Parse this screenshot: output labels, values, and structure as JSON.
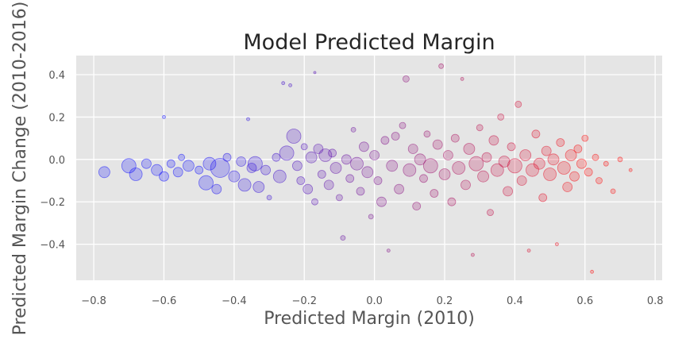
{
  "chart_data": {
    "type": "scatter",
    "title": "Model Predicted Margin",
    "xlabel": "Predicted Margin (2010)",
    "ylabel": "Predicted Margin Change (2010-2016)",
    "xlim": [
      -0.85,
      0.82
    ],
    "ylim": [
      -0.57,
      0.49
    ],
    "xticks": [
      -0.8,
      -0.6,
      -0.4,
      -0.2,
      0.0,
      0.2,
      0.4,
      0.6,
      0.8
    ],
    "xtick_labels": [
      "−0.8",
      "−0.6",
      "−0.4",
      "−0.2",
      "0.0",
      "0.2",
      "0.4",
      "0.6",
      "0.8"
    ],
    "yticks": [
      -0.4,
      -0.2,
      0.0,
      0.2,
      0.4
    ],
    "ytick_labels": [
      "−0.4",
      "−0.2",
      "0.0",
      "0.2",
      "0.4"
    ],
    "grid": true,
    "colors": {
      "background": "#e5e5e5",
      "grid": "#ffffff",
      "negative_margin": "#0000ff",
      "positive_margin": "#ff0000"
    },
    "color_encoding": "blue to red by predicted margin (2010)",
    "points": [
      {
        "x": -0.77,
        "y": -0.06,
        "s": 7
      },
      {
        "x": -0.7,
        "y": -0.03,
        "s": 9
      },
      {
        "x": -0.68,
        "y": -0.07,
        "s": 8
      },
      {
        "x": -0.65,
        "y": -0.02,
        "s": 6
      },
      {
        "x": -0.62,
        "y": -0.05,
        "s": 7
      },
      {
        "x": -0.6,
        "y": -0.08,
        "s": 6
      },
      {
        "x": -0.6,
        "y": 0.2,
        "s": 2
      },
      {
        "x": -0.58,
        "y": -0.02,
        "s": 5
      },
      {
        "x": -0.56,
        "y": -0.06,
        "s": 6
      },
      {
        "x": -0.55,
        "y": 0.01,
        "s": 4
      },
      {
        "x": -0.53,
        "y": -0.03,
        "s": 7
      },
      {
        "x": -0.5,
        "y": -0.05,
        "s": 5
      },
      {
        "x": -0.48,
        "y": -0.11,
        "s": 9
      },
      {
        "x": -0.47,
        "y": -0.02,
        "s": 8
      },
      {
        "x": -0.45,
        "y": -0.14,
        "s": 6
      },
      {
        "x": -0.44,
        "y": -0.04,
        "s": 12
      },
      {
        "x": -0.42,
        "y": 0.01,
        "s": 5
      },
      {
        "x": -0.4,
        "y": -0.08,
        "s": 7
      },
      {
        "x": -0.38,
        "y": -0.01,
        "s": 6
      },
      {
        "x": -0.37,
        "y": -0.12,
        "s": 8
      },
      {
        "x": -0.36,
        "y": 0.19,
        "s": 2
      },
      {
        "x": -0.35,
        "y": -0.04,
        "s": 6
      },
      {
        "x": -0.34,
        "y": -0.02,
        "s": 9
      },
      {
        "x": -0.33,
        "y": -0.13,
        "s": 7
      },
      {
        "x": -0.31,
        "y": -0.05,
        "s": 6
      },
      {
        "x": -0.3,
        "y": -0.18,
        "s": 3
      },
      {
        "x": -0.28,
        "y": 0.01,
        "s": 5
      },
      {
        "x": -0.27,
        "y": -0.08,
        "s": 8
      },
      {
        "x": -0.26,
        "y": 0.36,
        "s": 2
      },
      {
        "x": -0.25,
        "y": 0.03,
        "s": 9
      },
      {
        "x": -0.24,
        "y": 0.35,
        "s": 2
      },
      {
        "x": -0.23,
        "y": 0.11,
        "s": 9
      },
      {
        "x": -0.22,
        "y": -0.03,
        "s": 6
      },
      {
        "x": -0.21,
        "y": -0.1,
        "s": 5
      },
      {
        "x": -0.2,
        "y": 0.06,
        "s": 4
      },
      {
        "x": -0.19,
        "y": -0.14,
        "s": 6
      },
      {
        "x": -0.18,
        "y": 0.01,
        "s": 7
      },
      {
        "x": -0.17,
        "y": -0.2,
        "s": 4
      },
      {
        "x": -0.17,
        "y": 0.41,
        "s": 1.5
      },
      {
        "x": -0.16,
        "y": 0.05,
        "s": 6
      },
      {
        "x": -0.15,
        "y": -0.07,
        "s": 5
      },
      {
        "x": -0.14,
        "y": 0.02,
        "s": 8
      },
      {
        "x": -0.13,
        "y": -0.12,
        "s": 6
      },
      {
        "x": -0.12,
        "y": 0.03,
        "s": 5
      },
      {
        "x": -0.11,
        "y": -0.04,
        "s": 7
      },
      {
        "x": -0.1,
        "y": -0.18,
        "s": 4
      },
      {
        "x": -0.09,
        "y": -0.37,
        "s": 3
      },
      {
        "x": -0.08,
        "y": 0.0,
        "s": 6
      },
      {
        "x": -0.07,
        "y": -0.09,
        "s": 5
      },
      {
        "x": -0.06,
        "y": 0.14,
        "s": 3
      },
      {
        "x": -0.05,
        "y": -0.02,
        "s": 8
      },
      {
        "x": -0.04,
        "y": -0.15,
        "s": 5
      },
      {
        "x": -0.03,
        "y": 0.06,
        "s": 6
      },
      {
        "x": -0.02,
        "y": -0.06,
        "s": 7
      },
      {
        "x": -0.01,
        "y": -0.27,
        "s": 3
      },
      {
        "x": 0.0,
        "y": 0.02,
        "s": 6
      },
      {
        "x": 0.01,
        "y": -0.1,
        "s": 5
      },
      {
        "x": 0.02,
        "y": -0.2,
        "s": 6
      },
      {
        "x": 0.03,
        "y": 0.09,
        "s": 5
      },
      {
        "x": 0.04,
        "y": -0.43,
        "s": 2
      },
      {
        "x": 0.05,
        "y": -0.03,
        "s": 7
      },
      {
        "x": 0.06,
        "y": 0.11,
        "s": 5
      },
      {
        "x": 0.07,
        "y": -0.14,
        "s": 6
      },
      {
        "x": 0.08,
        "y": 0.16,
        "s": 4
      },
      {
        "x": 0.09,
        "y": 0.38,
        "s": 4
      },
      {
        "x": 0.1,
        "y": -0.05,
        "s": 8
      },
      {
        "x": 0.11,
        "y": 0.05,
        "s": 6
      },
      {
        "x": 0.12,
        "y": -0.22,
        "s": 5
      },
      {
        "x": 0.13,
        "y": 0.0,
        "s": 7
      },
      {
        "x": 0.14,
        "y": -0.09,
        "s": 5
      },
      {
        "x": 0.15,
        "y": 0.12,
        "s": 4
      },
      {
        "x": 0.16,
        "y": -0.03,
        "s": 9
      },
      {
        "x": 0.17,
        "y": -0.16,
        "s": 5
      },
      {
        "x": 0.18,
        "y": 0.07,
        "s": 6
      },
      {
        "x": 0.19,
        "y": 0.44,
        "s": 3
      },
      {
        "x": 0.2,
        "y": -0.07,
        "s": 7
      },
      {
        "x": 0.21,
        "y": 0.02,
        "s": 6
      },
      {
        "x": 0.22,
        "y": -0.2,
        "s": 5
      },
      {
        "x": 0.23,
        "y": 0.1,
        "s": 5
      },
      {
        "x": 0.24,
        "y": -0.04,
        "s": 8
      },
      {
        "x": 0.25,
        "y": 0.38,
        "s": 2
      },
      {
        "x": 0.26,
        "y": -0.12,
        "s": 6
      },
      {
        "x": 0.27,
        "y": 0.05,
        "s": 7
      },
      {
        "x": 0.28,
        "y": -0.45,
        "s": 2
      },
      {
        "x": 0.29,
        "y": -0.02,
        "s": 9
      },
      {
        "x": 0.3,
        "y": 0.15,
        "s": 4
      },
      {
        "x": 0.31,
        "y": -0.08,
        "s": 7
      },
      {
        "x": 0.32,
        "y": 0.01,
        "s": 6
      },
      {
        "x": 0.33,
        "y": -0.25,
        "s": 4
      },
      {
        "x": 0.34,
        "y": 0.09,
        "s": 6
      },
      {
        "x": 0.35,
        "y": -0.05,
        "s": 8
      },
      {
        "x": 0.36,
        "y": 0.2,
        "s": 4
      },
      {
        "x": 0.37,
        "y": -0.01,
        "s": 7
      },
      {
        "x": 0.38,
        "y": -0.15,
        "s": 6
      },
      {
        "x": 0.39,
        "y": 0.06,
        "s": 5
      },
      {
        "x": 0.4,
        "y": -0.03,
        "s": 9
      },
      {
        "x": 0.41,
        "y": 0.26,
        "s": 4
      },
      {
        "x": 0.42,
        "y": -0.1,
        "s": 6
      },
      {
        "x": 0.43,
        "y": 0.02,
        "s": 7
      },
      {
        "x": 0.44,
        "y": -0.43,
        "s": 2
      },
      {
        "x": 0.45,
        "y": -0.05,
        "s": 8
      },
      {
        "x": 0.46,
        "y": 0.12,
        "s": 5
      },
      {
        "x": 0.47,
        "y": -0.02,
        "s": 7
      },
      {
        "x": 0.48,
        "y": -0.18,
        "s": 5
      },
      {
        "x": 0.49,
        "y": 0.04,
        "s": 6
      },
      {
        "x": 0.5,
        "y": -0.07,
        "s": 8
      },
      {
        "x": 0.51,
        "y": 0.0,
        "s": 7
      },
      {
        "x": 0.52,
        "y": -0.4,
        "s": 2
      },
      {
        "x": 0.53,
        "y": 0.08,
        "s": 5
      },
      {
        "x": 0.54,
        "y": -0.04,
        "s": 8
      },
      {
        "x": 0.55,
        "y": -0.13,
        "s": 6
      },
      {
        "x": 0.56,
        "y": 0.02,
        "s": 7
      },
      {
        "x": 0.57,
        "y": -0.08,
        "s": 6
      },
      {
        "x": 0.58,
        "y": 0.05,
        "s": 5
      },
      {
        "x": 0.59,
        "y": -0.02,
        "s": 6
      },
      {
        "x": 0.6,
        "y": 0.1,
        "s": 4
      },
      {
        "x": 0.61,
        "y": -0.06,
        "s": 5
      },
      {
        "x": 0.62,
        "y": -0.53,
        "s": 2
      },
      {
        "x": 0.63,
        "y": 0.01,
        "s": 4
      },
      {
        "x": 0.64,
        "y": -0.1,
        "s": 4
      },
      {
        "x": 0.66,
        "y": -0.02,
        "s": 3
      },
      {
        "x": 0.68,
        "y": -0.15,
        "s": 3
      },
      {
        "x": 0.7,
        "y": 0.0,
        "s": 3
      },
      {
        "x": 0.73,
        "y": -0.05,
        "s": 2
      }
    ]
  }
}
